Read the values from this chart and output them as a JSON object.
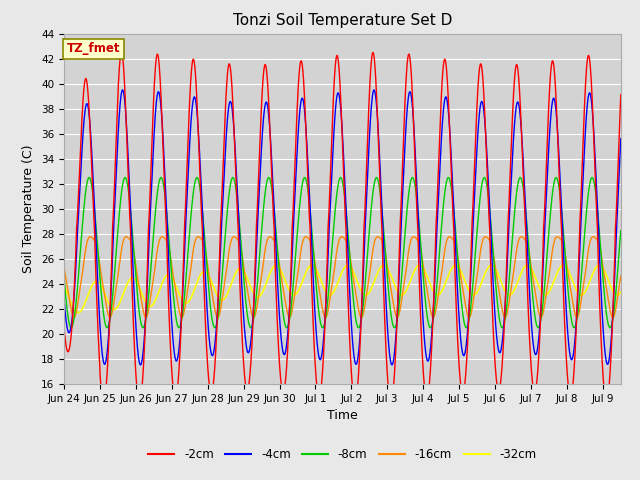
{
  "title": "Tonzi Soil Temperature Set D",
  "xlabel": "Time",
  "ylabel": "Soil Temperature (C)",
  "ylim": [
    16,
    44
  ],
  "yticks": [
    16,
    18,
    20,
    22,
    24,
    26,
    28,
    30,
    32,
    34,
    36,
    38,
    40,
    42,
    44
  ],
  "legend_label": "TZ_fmet",
  "series_labels": [
    "-2cm",
    "-4cm",
    "-8cm",
    "-16cm",
    "-32cm"
  ],
  "series_colors": [
    "#ff0000",
    "#0000ff",
    "#00cc00",
    "#ff8800",
    "#ffff00"
  ],
  "series_linewidths": [
    1.0,
    1.0,
    1.0,
    1.0,
    1.2
  ],
  "background_color": "#e8e8e8",
  "plot_bg_color": "#d3d3d3",
  "tick_labels": [
    "Jun 24",
    "Jun 25",
    "Jun 26",
    "Jun 27",
    "Jun 28",
    "Jun 29",
    "Jun 30",
    "Jul 1",
    "Jul 2",
    "Jul 3",
    "Jul 4",
    "Jul 5",
    "Jul 6",
    "Jul 7",
    "Jul 8",
    "Jul 9"
  ],
  "tick_positions": [
    0,
    1,
    2,
    3,
    4,
    5,
    6,
    7,
    8,
    9,
    10,
    11,
    12,
    13,
    14,
    15
  ],
  "xlim": [
    0,
    15.5
  ]
}
